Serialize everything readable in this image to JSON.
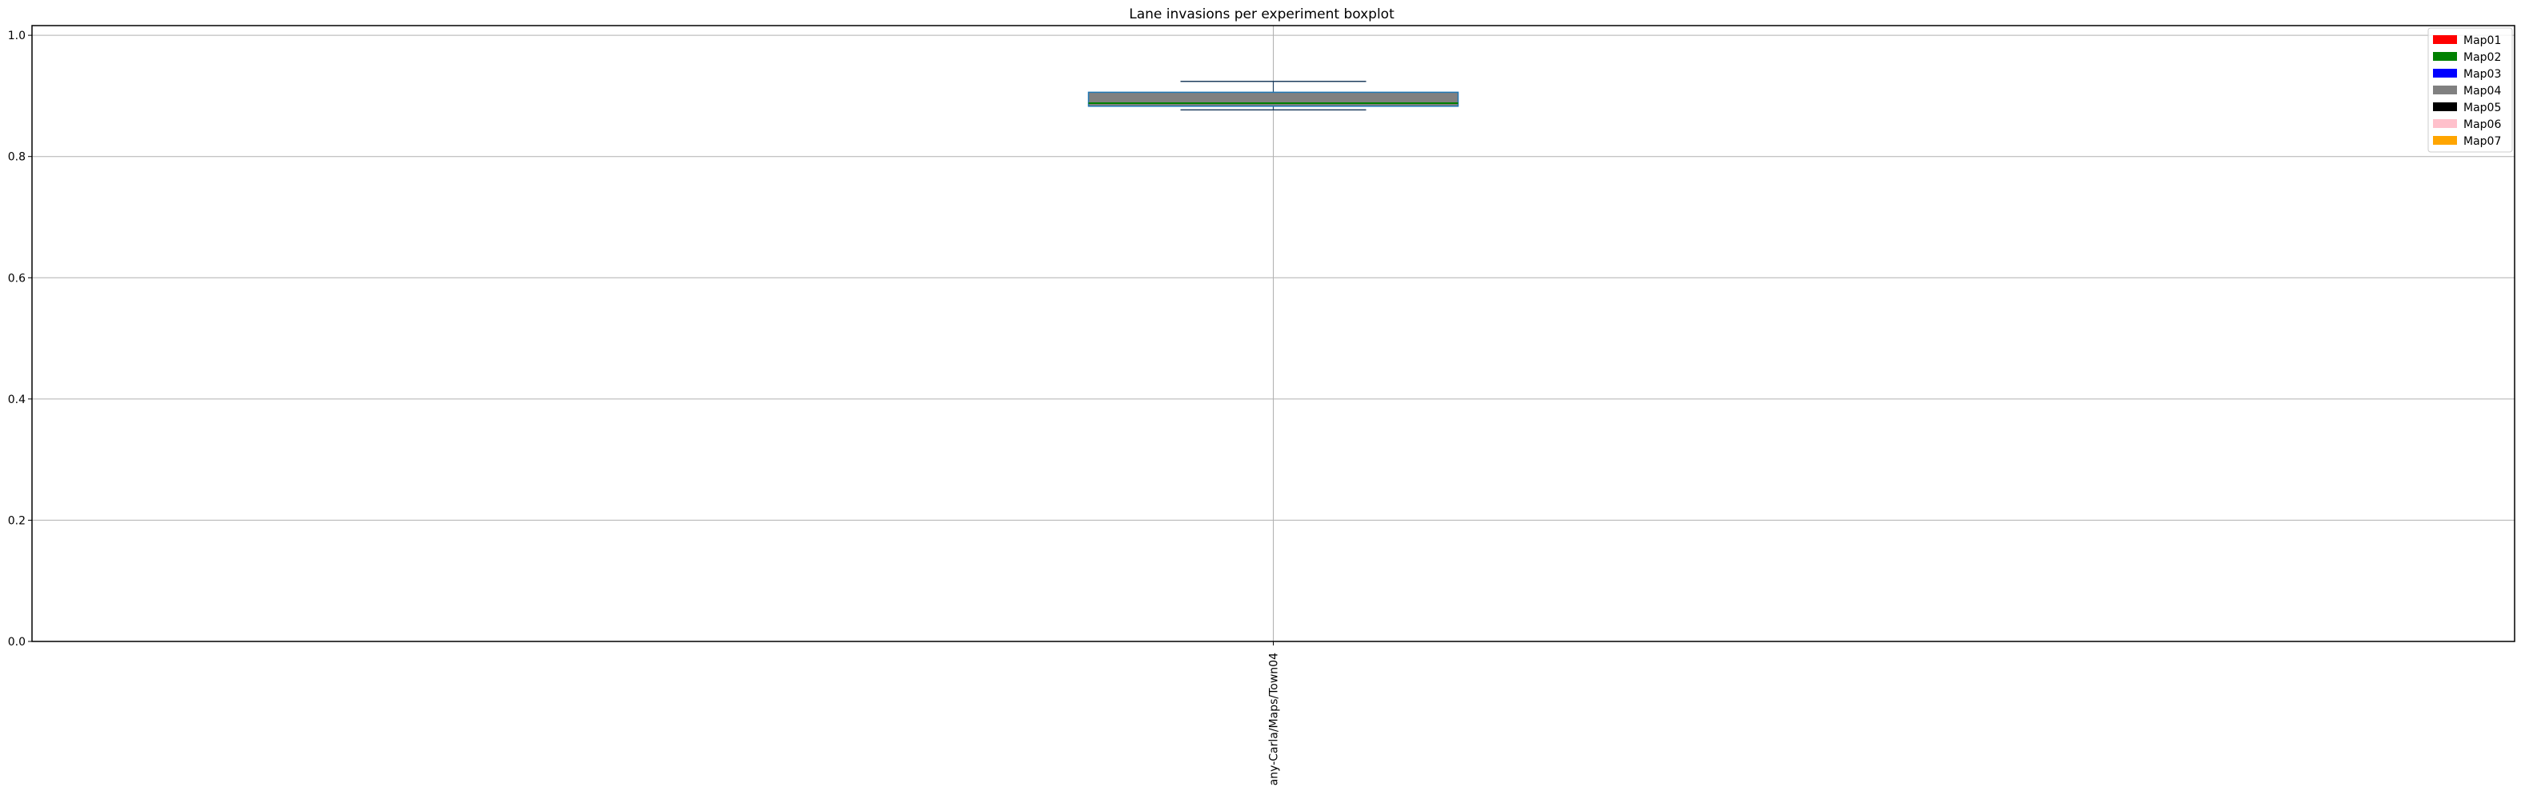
{
  "chart_data": {
    "type": "boxplot",
    "title": "Lane invasions per experiment boxplot",
    "xlabel": "",
    "ylabel": "",
    "categories": [
      "any-Carla/Maps/Town04"
    ],
    "ylim": [
      0,
      1.0
    ],
    "yticks": [
      0.0,
      0.2,
      0.4,
      0.6,
      0.8,
      1.0
    ],
    "ytick_labels": [
      "0.0",
      "0.2",
      "0.4",
      "0.6",
      "0.8",
      "1.0"
    ],
    "grid": true,
    "legend_position": "top-right",
    "legend": [
      {
        "name": "Map01",
        "color": "#ff0000"
      },
      {
        "name": "Map02",
        "color": "#008000"
      },
      {
        "name": "Map03",
        "color": "#0000ff"
      },
      {
        "name": "Map04",
        "color": "#808080"
      },
      {
        "name": "Map05",
        "color": "#000000"
      },
      {
        "name": "Map06",
        "color": "#ffc0cb"
      },
      {
        "name": "Map07",
        "color": "#ffa500"
      }
    ],
    "boxes": [
      {
        "category": "any-Carla/Maps/Town04",
        "whisker_low": 0.877,
        "q1": 0.883,
        "median": 0.888,
        "q3": 0.906,
        "whisker_high": 0.924,
        "fill_color": "#808080",
        "edge_color": "#1f77b4",
        "median_color": "#008000",
        "whisker_color": "#1f3f5f"
      }
    ]
  }
}
